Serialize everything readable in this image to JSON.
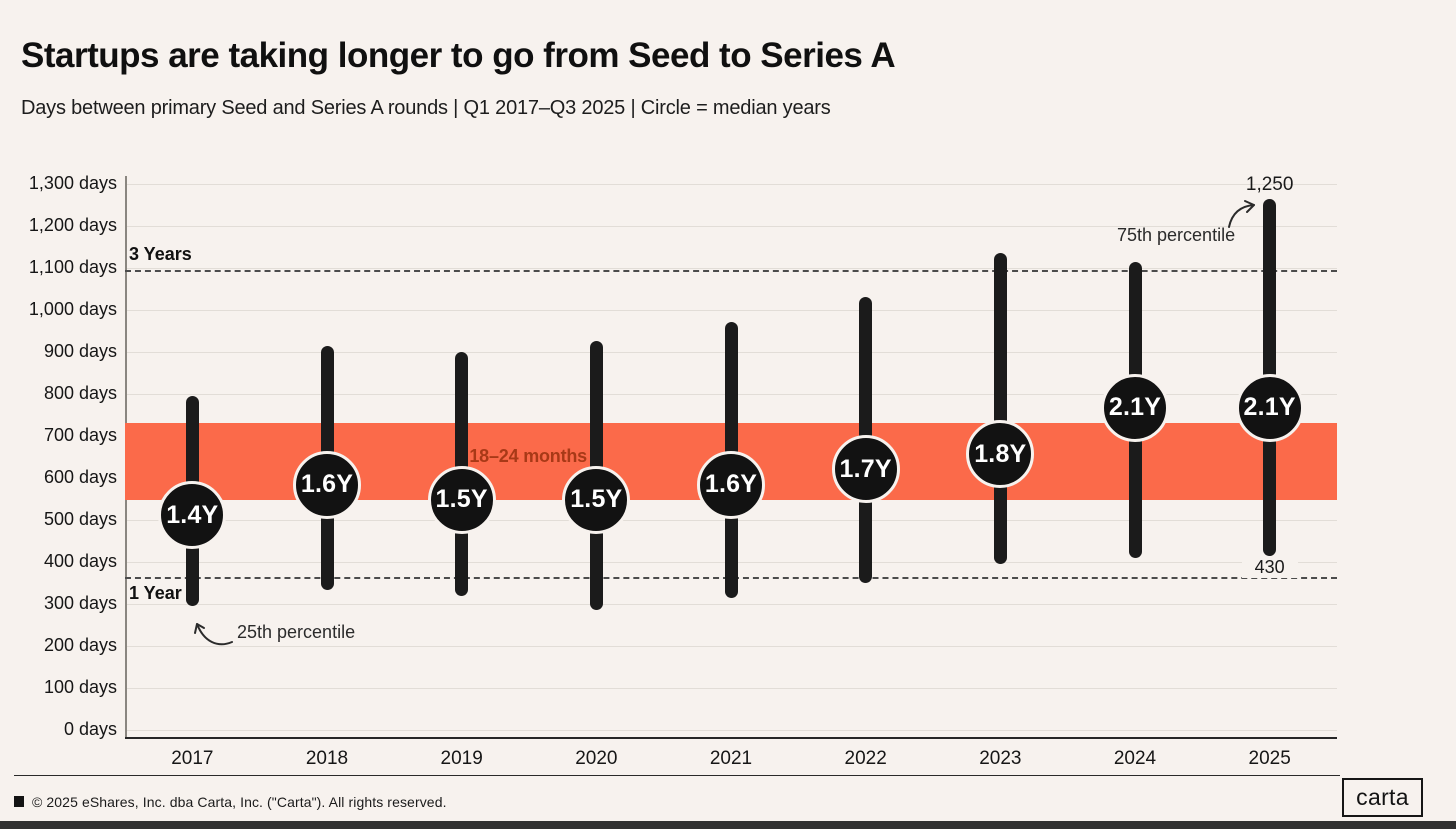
{
  "header": {
    "title": "Startups are taking longer to go from Seed to Series A",
    "subtitle": "Days between primary Seed and Series A rounds | Q1 2017–Q3 2025 | Circle = median years"
  },
  "chart_data": {
    "type": "bar",
    "subtype": "vertical 25th–75th percentile range bars with median circle markers",
    "title": "Startups are taking longer to go from Seed to Series A",
    "xlabel": "",
    "ylabel": "days",
    "ylim": [
      0,
      1300
    ],
    "grid": "horizontal gridlines every 100 days",
    "legend": "none",
    "categories": [
      "2017",
      "2018",
      "2019",
      "2020",
      "2021",
      "2022",
      "2023",
      "2024",
      "2025"
    ],
    "series": [
      {
        "name": "25th percentile (days)",
        "values": [
          310,
          350,
          335,
          300,
          330,
          365,
          410,
          425,
          430
        ]
      },
      {
        "name": "75th percentile (days)",
        "values": [
          780,
          900,
          885,
          910,
          955,
          1015,
          1120,
          1100,
          1250
        ]
      },
      {
        "name": "Median (years)",
        "values": [
          1.4,
          1.6,
          1.5,
          1.5,
          1.6,
          1.7,
          1.8,
          2.1,
          2.1
        ]
      }
    ],
    "median_days": [
      511,
      584,
      548,
      548,
      584,
      621,
      657,
      767,
      767
    ],
    "median_labels": [
      "1.4Y",
      "1.6Y",
      "1.5Y",
      "1.5Y",
      "1.6Y",
      "1.7Y",
      "1.8Y",
      "2.1Y",
      "2.1Y"
    ],
    "ytick_labels": [
      "0 days",
      "100 days",
      "200 days",
      "300 days",
      "400 days",
      "500 days",
      "600 days",
      "700 days",
      "800 days",
      "900 days",
      "1,000 days",
      "1,100 days",
      "1,200 days",
      "1,300 days"
    ],
    "band": {
      "label": "18–24 months",
      "from_days": 548,
      "to_days": 730,
      "color": "#FB6A4A",
      "label_color": "#A83917"
    },
    "reference_lines": [
      {
        "label": "3 Years",
        "days": 1095,
        "label_side": "above"
      },
      {
        "label": "1 Year",
        "days": 365,
        "label_side": "below"
      }
    ],
    "annotations": {
      "p75_label": "75th percentile",
      "p25_label": "25th percentile",
      "max_value_label": "1,250",
      "min_value_label": "430"
    },
    "colors": {
      "bar": "#1B1B1B",
      "median_circle": "#121212",
      "median_text": "#FFFFFF",
      "background": "#F7F2EE"
    }
  },
  "footer": {
    "copyright": "© 2025 eShares, Inc. dba Carta, Inc. (\"Carta\"). All rights reserved.",
    "logo": "carta"
  }
}
